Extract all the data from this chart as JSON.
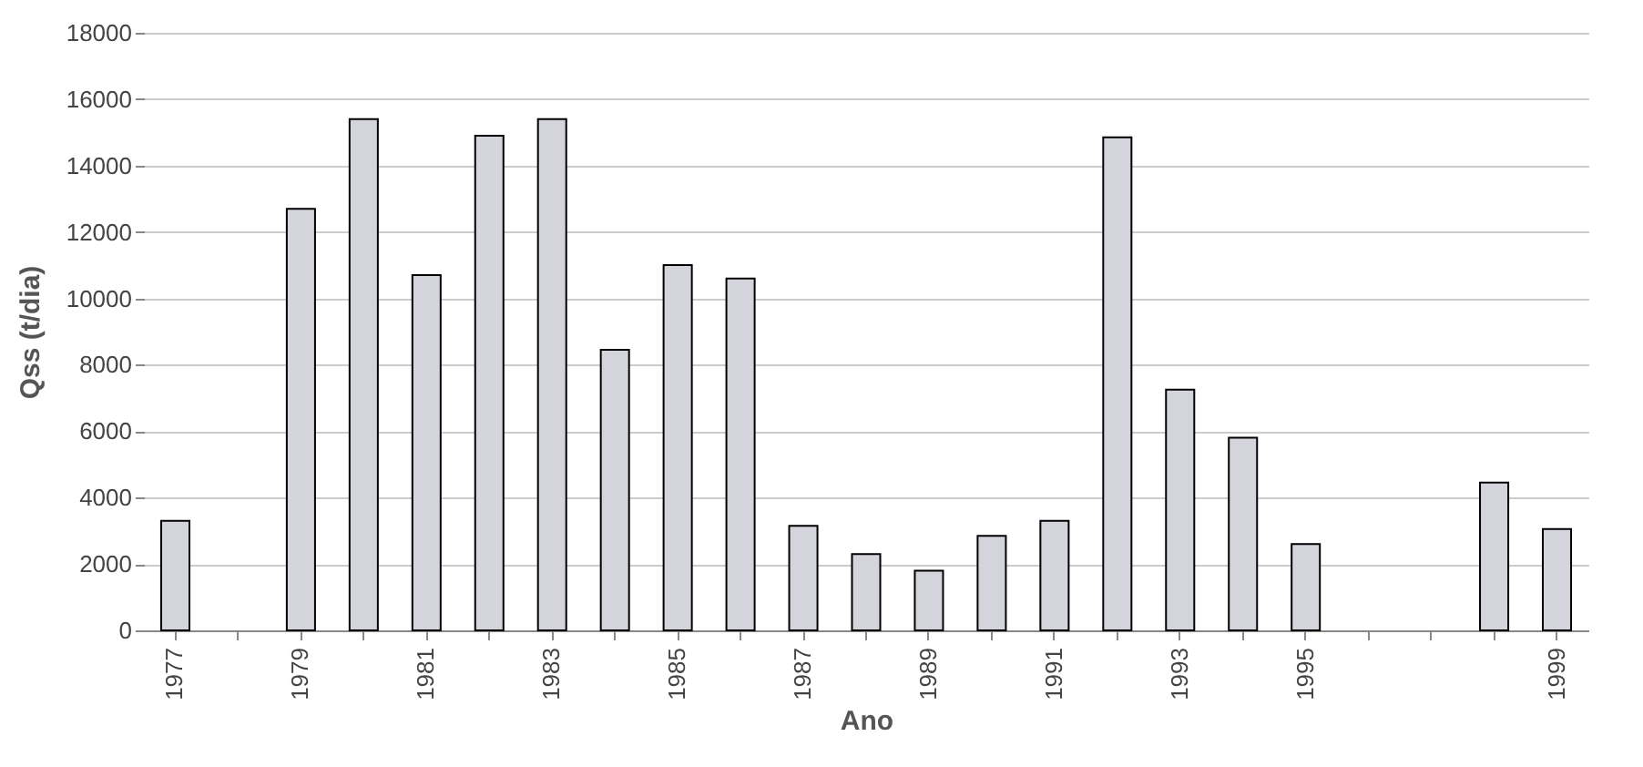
{
  "chart_data": {
    "type": "bar",
    "xlabel": "Ano",
    "ylabel": "Qss (t/dia)",
    "categories": [
      "1977",
      null,
      "1979",
      null,
      "1981",
      null,
      "1983",
      null,
      "1985",
      null,
      "1987",
      null,
      "1989",
      null,
      "1991",
      null,
      "1993",
      null,
      "1995",
      null,
      null,
      null,
      "1999"
    ],
    "values": [
      3300,
      null,
      12700,
      15400,
      10700,
      14900,
      15400,
      8450,
      11000,
      10600,
      3150,
      2300,
      1800,
      2850,
      3300,
      14850,
      7250,
      5800,
      2600,
      null,
      null,
      4450,
      3050
    ],
    "color": "#d4d4dc",
    "ylim": [
      0,
      18000
    ],
    "yticks": [
      0,
      2000,
      4000,
      6000,
      8000,
      10000,
      12000,
      14000,
      16000,
      18000
    ],
    "grid": "y"
  }
}
